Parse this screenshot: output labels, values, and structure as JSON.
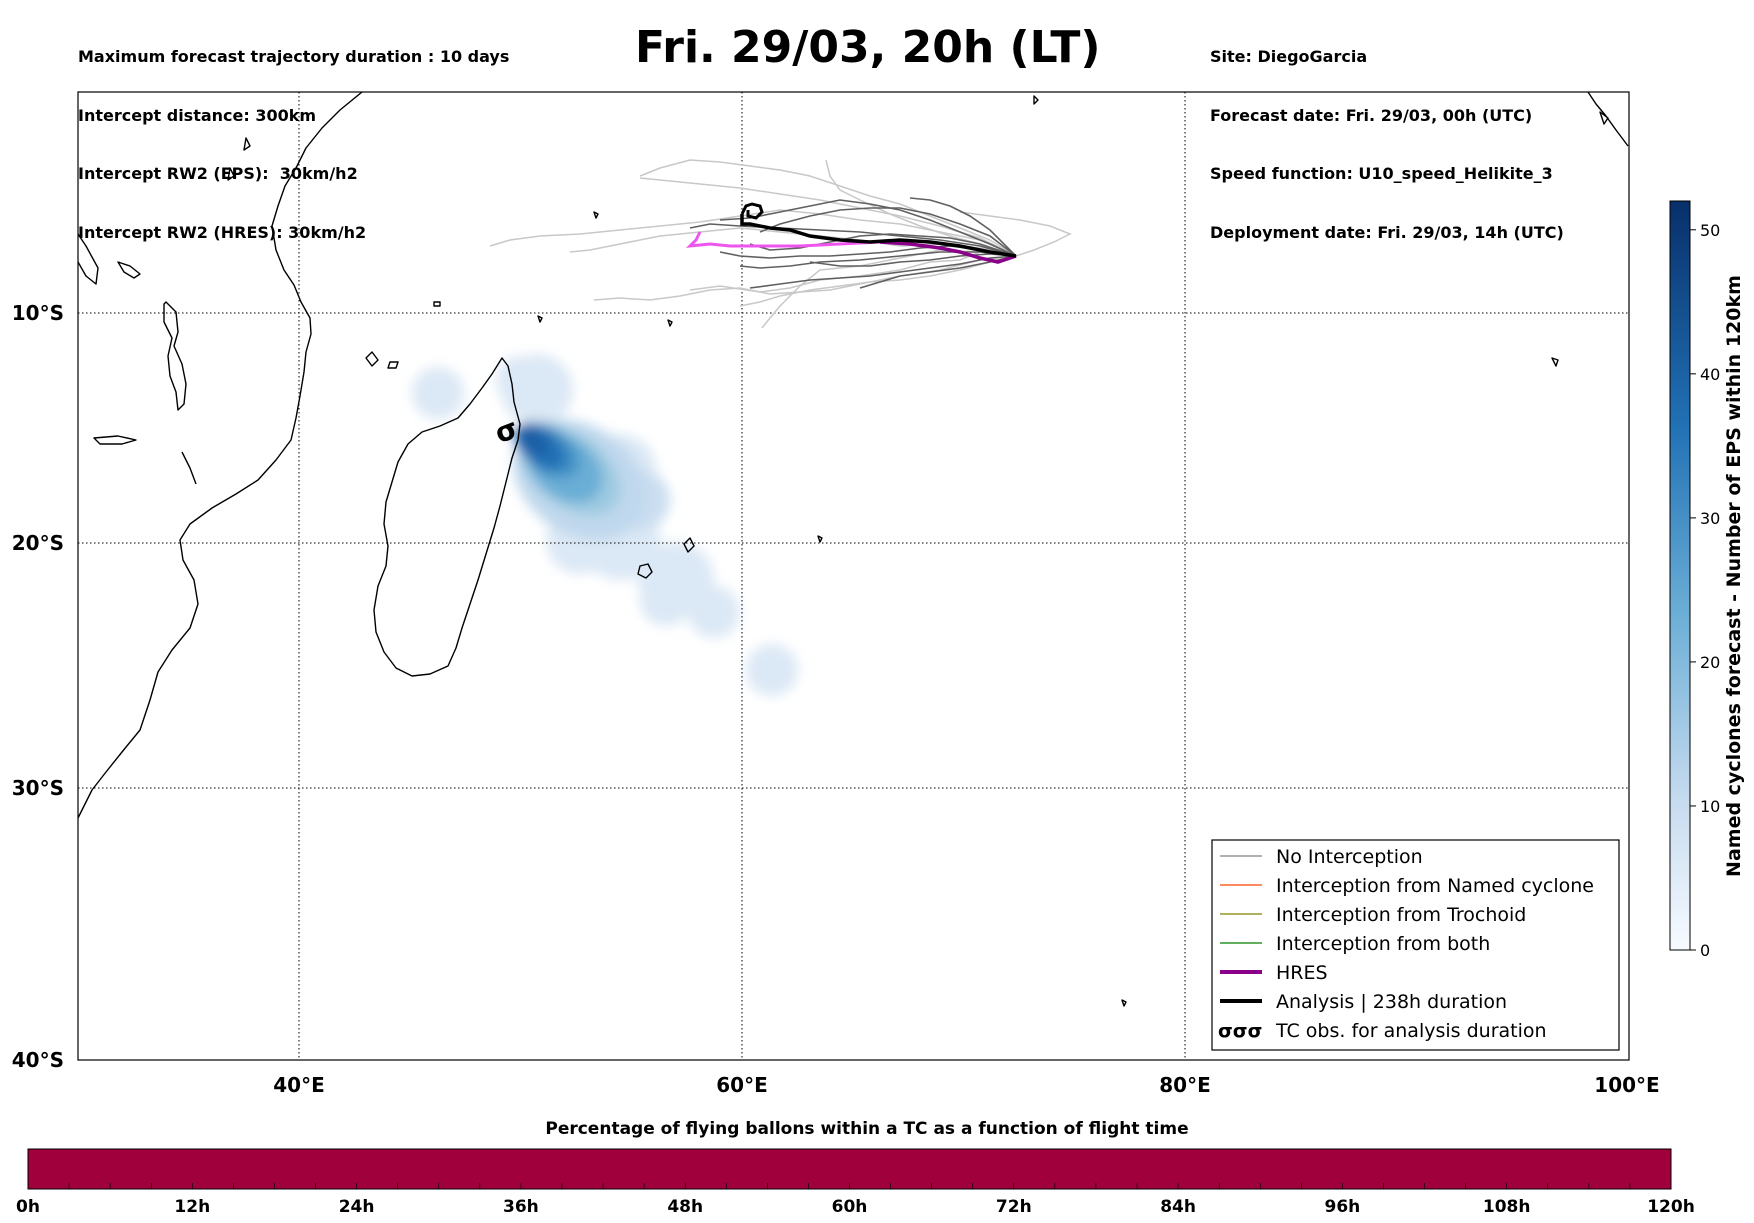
{
  "header": {
    "left_lines": [
      "Maximum forecast trajectory duration : 10 days",
      "Intercept distance: 300km",
      "Intercept RW2 (EPS):  30km/h2",
      "Intercept RW2 (HRES): 30km/h2"
    ],
    "title": "Fri. 29/03, 20h (LT)",
    "right_lines": [
      "Site: DiegoGarcia",
      "Forecast date: Fri. 29/03, 00h (UTC)",
      "Speed function: U10_speed_Helikite_3",
      "Deployment date: Fri. 29/03, 14h (UTC)"
    ]
  },
  "map": {
    "lon_range": [
      30,
      100
    ],
    "lat_range": [
      -40,
      0
    ],
    "lon_ticks": [
      "40°E",
      "60°E",
      "80°E",
      "100°E"
    ],
    "lat_ticks": [
      "10°S",
      "20°S",
      "30°S",
      "40°S"
    ],
    "gridlines": true,
    "tc_symbol": "cyclone-icon",
    "colors": {
      "eps_tracks": "#606060",
      "eps_tracks_light": "#c8c8c8",
      "hres": "#8b008b",
      "hres_light": "#ee55ee",
      "analysis": "#000000",
      "density_max": "#08306b",
      "density_min": "#deebf7"
    }
  },
  "legend": {
    "placement": "lower-right",
    "items": [
      {
        "label": "No Interception",
        "color": "#808080",
        "style": "line"
      },
      {
        "label": "Interception from Named cyclone",
        "color": "#ff4500",
        "style": "line"
      },
      {
        "label": "Interception from Trochoid",
        "color": "#808000",
        "style": "line"
      },
      {
        "label": "Interception from both",
        "color": "#008000",
        "style": "line"
      },
      {
        "label": "HRES",
        "color": "#8b008b",
        "style": "thick"
      },
      {
        "label": "Analysis | 238h duration",
        "color": "#000000",
        "style": "thick"
      },
      {
        "label": "TC obs. for analysis duration",
        "color": "#000000",
        "style": "symbols",
        "glyph": "σσσ"
      }
    ]
  },
  "colorbar": {
    "label": "Named cyclones forecast - Number of EPS within 120km",
    "ticks": [
      "0",
      "10",
      "20",
      "30",
      "40",
      "50"
    ],
    "range": [
      0,
      52
    ],
    "colormap": "Blues"
  },
  "timebar": {
    "title": "Percentage of flying ballons within a TC as a function of flight time",
    "ticks": [
      "0h",
      "12h",
      "24h",
      "36h",
      "48h",
      "60h",
      "72h",
      "84h",
      "96h",
      "108h",
      "120h"
    ],
    "color": "#a0003c",
    "percentage": 100
  }
}
